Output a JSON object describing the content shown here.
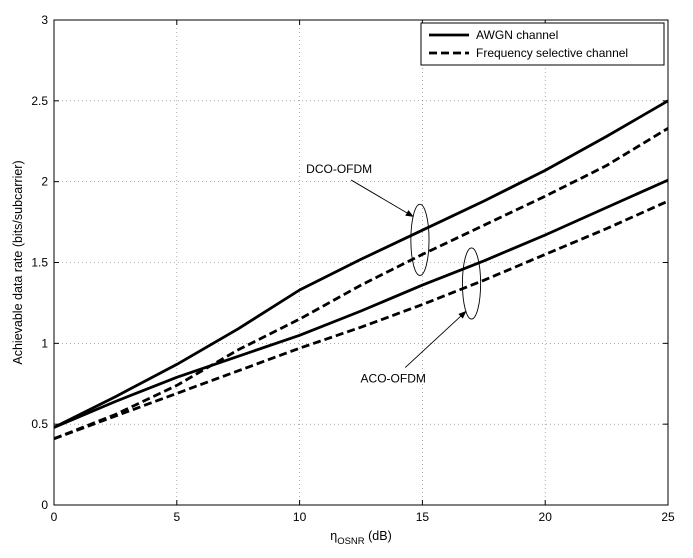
{
  "chart_data": {
    "type": "line",
    "title": "",
    "xlabel": "η",
    "xlabel_subscript": "OSNR",
    "xlabel_suffix": " (dB)",
    "ylabel": "Achievable data rate (bits/subcarrier)",
    "xlim": [
      0,
      25
    ],
    "ylim": [
      0,
      3
    ],
    "xticks": [
      0,
      5,
      10,
      15,
      20,
      25
    ],
    "yticks": [
      0,
      0.5,
      1,
      1.5,
      2,
      2.5,
      3
    ],
    "xtick_labels": [
      "0",
      "5",
      "10",
      "15",
      "20",
      "25"
    ],
    "ytick_labels": [
      "0",
      "0.5",
      "1",
      "1.5",
      "2",
      "2.5",
      "3"
    ],
    "grid": true,
    "legend_position": "top-right",
    "legend": [
      {
        "label": "AWGN channel",
        "style": "solid"
      },
      {
        "label": "Frequency selective channel",
        "style": "dashed"
      }
    ],
    "series": [
      {
        "name": "DCO-OFDM, AWGN channel",
        "style": "solid",
        "x": [
          0,
          2.5,
          5,
          7.5,
          10,
          12.5,
          15,
          17.5,
          20,
          22.5,
          25
        ],
        "y": [
          0.48,
          0.67,
          0.87,
          1.09,
          1.33,
          1.52,
          1.7,
          1.88,
          2.07,
          2.28,
          2.5
        ]
      },
      {
        "name": "DCO-OFDM, Frequency selective channel",
        "style": "dashed",
        "x": [
          0,
          2.5,
          5,
          7.5,
          10,
          12.5,
          15,
          17.5,
          20,
          22.5,
          25
        ],
        "y": [
          0.41,
          0.56,
          0.74,
          0.96,
          1.15,
          1.36,
          1.55,
          1.73,
          1.91,
          2.1,
          2.33
        ]
      },
      {
        "name": "ACO-OFDM, AWGN channel",
        "style": "solid",
        "x": [
          0,
          2.5,
          5,
          7.5,
          10,
          12.5,
          15,
          17.5,
          20,
          22.5,
          25
        ],
        "y": [
          0.48,
          0.64,
          0.79,
          0.92,
          1.05,
          1.2,
          1.36,
          1.51,
          1.67,
          1.84,
          2.01
        ]
      },
      {
        "name": "ACO-OFDM, Frequency selective channel",
        "style": "dashed",
        "x": [
          0,
          2.5,
          5,
          7.5,
          10,
          12.5,
          15,
          17.5,
          20,
          22.5,
          25
        ],
        "y": [
          0.41,
          0.55,
          0.69,
          0.83,
          0.97,
          1.1,
          1.24,
          1.39,
          1.55,
          1.71,
          1.88
        ]
      }
    ],
    "annotations": [
      {
        "text": "DCO-OFDM",
        "ellipse_center": [
          14.9,
          1.64
        ],
        "ellipse_radius": [
          0.37,
          0.22
        ],
        "arrow_from": [
          12.1,
          2.01
        ]
      },
      {
        "text": "ACO-OFDM",
        "ellipse_center": [
          17.0,
          1.37
        ],
        "ellipse_radius": [
          0.37,
          0.22
        ],
        "arrow_from": [
          14.3,
          0.85
        ]
      }
    ]
  }
}
